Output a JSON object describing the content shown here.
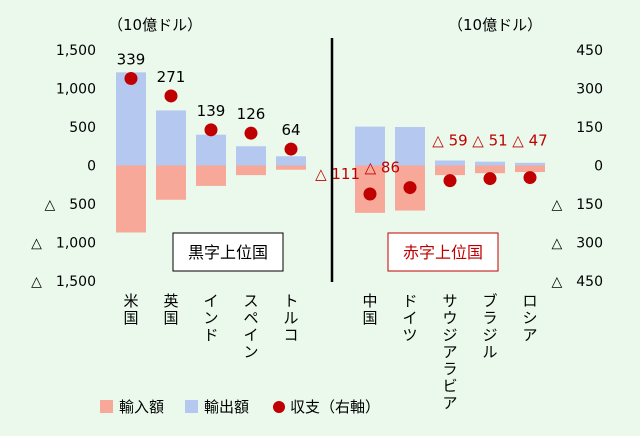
{
  "chart_data": {
    "type": "bar",
    "unit_left": "（10億ドル）",
    "unit_right": "（10億ドル）",
    "left_axis": {
      "range": [
        -1500,
        1500
      ],
      "ticks": [
        {
          "v": 1500,
          "label": "1,500"
        },
        {
          "v": 1000,
          "label": "1,000"
        },
        {
          "v": 500,
          "label": "500"
        },
        {
          "v": 0,
          "label": "0"
        },
        {
          "v": -500,
          "label": "△　500"
        },
        {
          "v": -1000,
          "label": "△　1,000"
        },
        {
          "v": -1500,
          "label": "△　1,500"
        }
      ]
    },
    "right_axis": {
      "range": [
        -450,
        450
      ],
      "ticks": [
        {
          "v": 450,
          "label": "450"
        },
        {
          "v": 300,
          "label": "300"
        },
        {
          "v": 150,
          "label": "150"
        },
        {
          "v": 0,
          "label": "0"
        },
        {
          "v": -150,
          "label": "△　150"
        },
        {
          "v": -300,
          "label": "△　300"
        },
        {
          "v": -450,
          "label": "△　450"
        }
      ]
    },
    "groups": [
      {
        "label": "黒字上位国",
        "categories": [
          "米国",
          "英国",
          "インド",
          "スペイン",
          "トルコ"
        ],
        "exports": [
          1210,
          715,
          400,
          250,
          120
        ],
        "imports": [
          -870,
          -445,
          -265,
          -125,
          -55
        ],
        "balance": [
          339,
          271,
          139,
          126,
          64
        ],
        "balance_labels": [
          "339",
          "271",
          "139",
          "126",
          "64"
        ]
      },
      {
        "label": "赤字上位国",
        "categories": [
          "中国",
          "ドイツ",
          "サウジアラビア",
          "ブラジル",
          "ロシア"
        ],
        "exports": [
          505,
          500,
          65,
          50,
          35
        ],
        "imports": [
          -615,
          -585,
          -125,
          -100,
          -85
        ],
        "balance": [
          -111,
          -86,
          -59,
          -51,
          -47
        ],
        "balance_labels": [
          "△ 111",
          "△ 86",
          "△ 59",
          "△ 51",
          "△ 47"
        ]
      }
    ],
    "legend": {
      "position": "bottom-left",
      "items": [
        {
          "key": "imports",
          "label": "輸入額"
        },
        {
          "key": "exports",
          "label": "輸出額"
        },
        {
          "key": "balance",
          "label": "収支（右軸）"
        }
      ]
    },
    "colors": {
      "exports": "#b5c9f0",
      "imports": "#f7a898",
      "balance": "#c00000",
      "surplus_box_border": "#000000",
      "surplus_box_text": "#000000",
      "deficit_box_border": "#c00000",
      "deficit_box_text": "#c00000",
      "deficit_label": "#c00000",
      "axis": "#000000",
      "background": "#eaf9ec"
    },
    "grid": false
  }
}
